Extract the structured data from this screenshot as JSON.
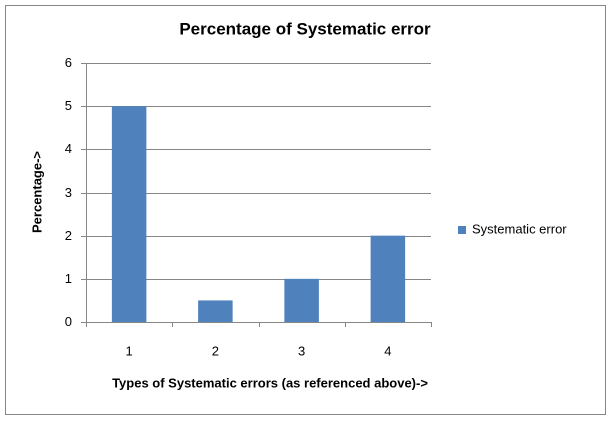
{
  "chart_data": {
    "type": "bar",
    "title": "Percentage of Systematic error",
    "x_label": "Types of Systematic errors (as referenced above)->",
    "y_label": "Percentage->",
    "categories": [
      "1",
      "2",
      "3",
      "4"
    ],
    "series": [
      {
        "name": "Systematic error",
        "color": "#4f81bd",
        "values": [
          5,
          0.5,
          1,
          2
        ]
      }
    ],
    "ylim": [
      0,
      6
    ],
    "yticks": [
      0,
      1,
      2,
      3,
      4,
      5,
      6
    ],
    "grid": true,
    "legend": "right"
  }
}
